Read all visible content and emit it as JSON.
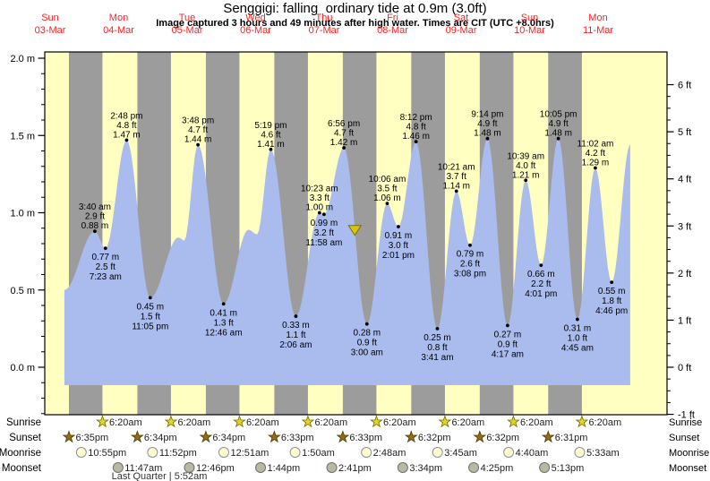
{
  "header": {
    "title": "Senggigi: falling  ordinary tide at 0.9m (3.0ft)",
    "subtitle": "Image captured 3 hours and 49 minutes after high water. Times are CIT (UTC +8.0hrs)"
  },
  "chart_data": {
    "type": "area",
    "title": "Senggigi: falling ordinary tide at 0.9m (3.0ft)",
    "ylabel_left_unit": "m",
    "ylabel_right_unit": "ft",
    "ylim_m": [
      -0.31,
      2.04
    ],
    "grid": false,
    "days": [
      {
        "weekday": "Sun",
        "date": "03-Mar"
      },
      {
        "weekday": "Mon",
        "date": "04-Mar"
      },
      {
        "weekday": "Tue",
        "date": "05-Mar"
      },
      {
        "weekday": "Wed",
        "date": "06-Mar"
      },
      {
        "weekday": "Thu",
        "date": "07-Mar"
      },
      {
        "weekday": "Fri",
        "date": "08-Mar"
      },
      {
        "weekday": "Sat",
        "date": "09-Mar"
      },
      {
        "weekday": "Sun",
        "date": "10-Mar"
      },
      {
        "weekday": "Mon",
        "date": "11-Mar"
      }
    ],
    "y_left_ticks": [
      {
        "m": 2.0,
        "label": "2.0 m"
      },
      {
        "m": 1.5,
        "label": "1.5 m"
      },
      {
        "m": 1.0,
        "label": "1.0 m"
      },
      {
        "m": 0.5,
        "label": "0.5 m"
      },
      {
        "m": 0.0,
        "label": "0.0 m"
      }
    ],
    "y_right_ticks": [
      {
        "ft": 6,
        "label": "6 ft"
      },
      {
        "ft": 5,
        "label": "5 ft"
      },
      {
        "ft": 4,
        "label": "4 ft"
      },
      {
        "ft": 3,
        "label": "3 ft"
      },
      {
        "ft": 2,
        "label": "2 ft"
      },
      {
        "ft": 1,
        "label": "1 ft"
      },
      {
        "ft": 0,
        "label": "0 ft"
      },
      {
        "ft": -1,
        "label": "-1 ft"
      }
    ],
    "curve_points": [
      {
        "day": 0,
        "time": "5:00 pm",
        "m": 0.5,
        "labeled": false
      },
      {
        "day": 1,
        "time": "3:40 am",
        "m": 0.88,
        "ft": "2.9",
        "type": "high",
        "labeled": true
      },
      {
        "day": 1,
        "time": "7:23 am",
        "m": 0.77,
        "ft": "2.5",
        "type": "low",
        "labeled": true
      },
      {
        "day": 1,
        "time": "2:48 pm",
        "m": 1.47,
        "ft": "4.8",
        "type": "high",
        "labeled": true
      },
      {
        "day": 1,
        "time": "11:05 pm",
        "m": 0.45,
        "ft": "1.5",
        "type": "low",
        "labeled": true
      },
      {
        "day": 2,
        "time": "9:00 am",
        "m": 0.84,
        "labeled": false
      },
      {
        "day": 2,
        "time": "11:00 am",
        "m": 0.82,
        "labeled": false
      },
      {
        "day": 2,
        "time": "3:48 pm",
        "m": 1.44,
        "ft": "4.7",
        "type": "high",
        "labeled": true
      },
      {
        "day": 3,
        "time": "12:46 am",
        "m": 0.41,
        "ft": "1.3",
        "type": "low",
        "labeled": true
      },
      {
        "day": 3,
        "time": "9:30 am",
        "m": 0.89,
        "labeled": false
      },
      {
        "day": 3,
        "time": "12:30 pm",
        "m": 0.86,
        "labeled": false
      },
      {
        "day": 3,
        "time": "5:19 pm",
        "m": 1.41,
        "ft": "4.6",
        "type": "high",
        "labeled": true
      },
      {
        "day": 4,
        "time": "2:06 am",
        "m": 0.33,
        "ft": "1.1",
        "type": "low",
        "labeled": true
      },
      {
        "day": 4,
        "time": "10:23 am",
        "m": 1.0,
        "ft": "3.3",
        "type": "high",
        "labeled": true
      },
      {
        "day": 4,
        "time": "11:58 am",
        "m": 0.99,
        "ft": "3.2",
        "type": "low",
        "labeled": true
      },
      {
        "day": 4,
        "time": "6:56 pm",
        "m": 1.42,
        "ft": "4.7",
        "type": "high",
        "labeled": true
      },
      {
        "day": 5,
        "time": "3:00 am",
        "m": 0.28,
        "ft": "0.9",
        "type": "low",
        "labeled": true
      },
      {
        "day": 5,
        "time": "10:06 am",
        "m": 1.06,
        "ft": "3.5",
        "type": "high",
        "labeled": true
      },
      {
        "day": 5,
        "time": "2:01 pm",
        "m": 0.91,
        "ft": "3.0",
        "type": "low",
        "labeled": true
      },
      {
        "day": 5,
        "time": "8:12 pm",
        "m": 1.46,
        "ft": "4.8",
        "type": "high",
        "labeled": true
      },
      {
        "day": 6,
        "time": "3:41 am",
        "m": 0.25,
        "ft": "0.8",
        "type": "low",
        "labeled": true
      },
      {
        "day": 6,
        "time": "10:21 am",
        "m": 1.14,
        "ft": "3.7",
        "type": "high",
        "labeled": true
      },
      {
        "day": 6,
        "time": "3:08 pm",
        "m": 0.79,
        "ft": "2.6",
        "type": "low",
        "labeled": true
      },
      {
        "day": 6,
        "time": "9:14 pm",
        "m": 1.48,
        "ft": "4.9",
        "type": "high",
        "labeled": true
      },
      {
        "day": 7,
        "time": "4:17 am",
        "m": 0.27,
        "ft": "0.9",
        "type": "low",
        "labeled": true
      },
      {
        "day": 7,
        "time": "10:39 am",
        "m": 1.21,
        "ft": "4.0",
        "type": "high",
        "labeled": true
      },
      {
        "day": 7,
        "time": "4:01 pm",
        "m": 0.66,
        "ft": "2.2",
        "type": "low",
        "labeled": true
      },
      {
        "day": 7,
        "time": "10:05 pm",
        "m": 1.48,
        "ft": "4.9",
        "type": "high",
        "labeled": true
      },
      {
        "day": 8,
        "time": "4:45 am",
        "m": 0.31,
        "ft": "1.0",
        "type": "low",
        "labeled": true
      },
      {
        "day": 8,
        "time": "11:02 am",
        "m": 1.29,
        "ft": "4.2",
        "type": "high",
        "labeled": true
      },
      {
        "day": 8,
        "time": "4:46 pm",
        "m": 0.55,
        "ft": "1.8",
        "type": "low",
        "labeled": true
      },
      {
        "day": 8,
        "time": "11:15 pm",
        "m": 1.44,
        "labeled": false
      }
    ],
    "current_marker": {
      "height_m": 0.9,
      "day": 4,
      "time": "10:45 pm"
    },
    "colors": {
      "day_band": "#ffffc2",
      "night_band": "#9c9c9c",
      "tide_fill": "#aabbee",
      "axis": "#000000",
      "day_label": "#ff2222",
      "tide_text": "#000000",
      "marker_fill": "#d6c511",
      "marker_stroke": "#7a7000",
      "sunrise_star": "#e5d51c",
      "sunrise_star_stroke": "#6f6b00",
      "sunset_star": "#8f6b1a",
      "sunset_star_stroke": "#4f3c00",
      "moonrise_fill": "#ffffd2",
      "moonrise_stroke": "#8f8f8f",
      "moonset_fill": "#b9b9a3",
      "moonset_stroke": "#6f6f6f",
      "astro_text": "#1f1f1f"
    }
  },
  "astro": {
    "rows": [
      {
        "id": "sunrise",
        "label": "Sunrise",
        "events": [
          {
            "day": 1,
            "time": "6:20am"
          },
          {
            "day": 2,
            "time": "6:20am"
          },
          {
            "day": 3,
            "time": "6:20am"
          },
          {
            "day": 4,
            "time": "6:20am"
          },
          {
            "day": 5,
            "time": "6:20am"
          },
          {
            "day": 6,
            "time": "6:20am"
          },
          {
            "day": 7,
            "time": "6:20am"
          },
          {
            "day": 8,
            "time": "6:20am"
          }
        ]
      },
      {
        "id": "sunset",
        "label": "Sunset",
        "events": [
          {
            "day": 0,
            "time": "6:35pm"
          },
          {
            "day": 1,
            "time": "6:34pm"
          },
          {
            "day": 2,
            "time": "6:34pm"
          },
          {
            "day": 3,
            "time": "6:33pm"
          },
          {
            "day": 4,
            "time": "6:33pm"
          },
          {
            "day": 5,
            "time": "6:32pm"
          },
          {
            "day": 6,
            "time": "6:32pm"
          },
          {
            "day": 7,
            "time": "6:31pm"
          }
        ]
      },
      {
        "id": "moonrise",
        "label": "Moonrise",
        "events": [
          {
            "day": 0,
            "time": "10:55pm"
          },
          {
            "day": 1,
            "time": "11:52pm"
          },
          {
            "day": 3,
            "time": "12:51am"
          },
          {
            "day": 4,
            "time": "1:50am"
          },
          {
            "day": 5,
            "time": "2:48am"
          },
          {
            "day": 6,
            "time": "3:45am"
          },
          {
            "day": 7,
            "time": "4:40am"
          },
          {
            "day": 8,
            "time": "5:33am"
          }
        ]
      },
      {
        "id": "moonset",
        "label": "Moonset",
        "events": [
          {
            "day": 1,
            "time": "11:47am"
          },
          {
            "day": 2,
            "time": "12:46pm"
          },
          {
            "day": 3,
            "time": "1:44pm"
          },
          {
            "day": 4,
            "time": "2:41pm"
          },
          {
            "day": 5,
            "time": "3:34pm"
          },
          {
            "day": 6,
            "time": "4:25pm"
          },
          {
            "day": 7,
            "time": "5:13pm"
          }
        ]
      }
    ],
    "moon_phase": "Last Quarter | 5:52am"
  }
}
